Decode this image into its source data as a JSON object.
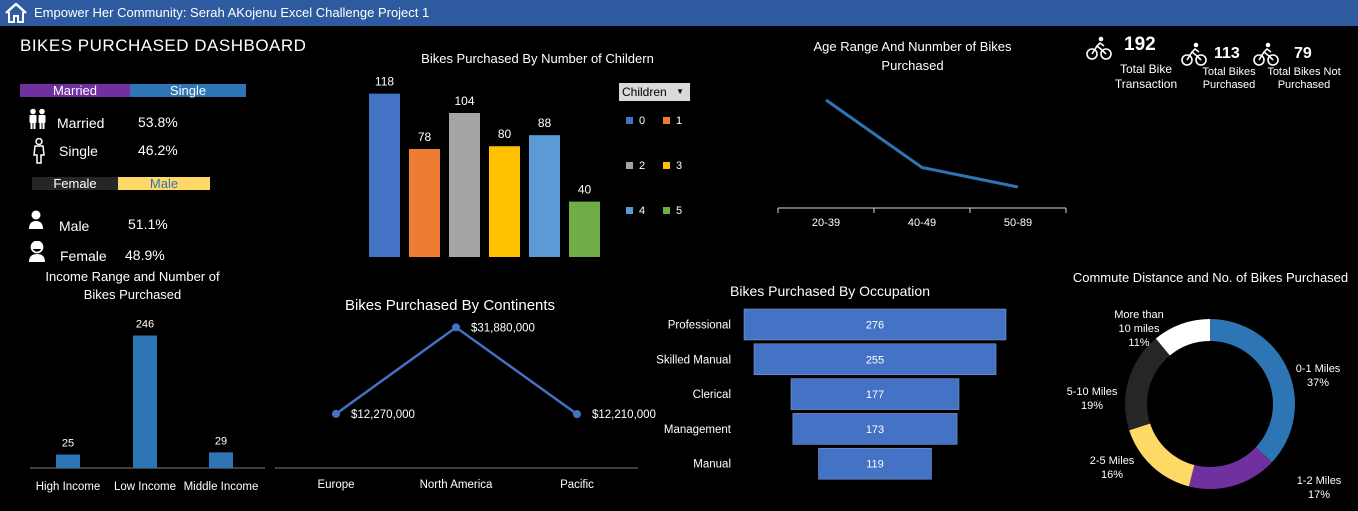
{
  "header": {
    "title": "Empower Her Community: Serah AKojenu Excel Challenge Project 1"
  },
  "dashboard_title": "BIKES PURCHASED DASHBOARD",
  "marital": {
    "legend": [
      "Married",
      "Single"
    ],
    "legend_colors": [
      "#7030a0",
      "#2e75b6"
    ],
    "stats": [
      {
        "label": "Married",
        "value": "53.8%"
      },
      {
        "label": "Single",
        "value": "46.2%"
      }
    ]
  },
  "gender": {
    "legend": [
      "Female",
      "Male"
    ],
    "legend_colors": [
      "#262626",
      "#ffd966"
    ],
    "stats": [
      {
        "label": "Male",
        "value": "51.1%"
      },
      {
        "label": "Female",
        "value": "48.9%"
      }
    ]
  },
  "children_filter": {
    "label": "Children",
    "options": [
      "0",
      "1",
      "2",
      "3",
      "4",
      "5"
    ]
  },
  "kpis": [
    {
      "value": "192",
      "label": "Total Bike Transaction"
    },
    {
      "value": "113",
      "label": "Total Bikes Purchased"
    },
    {
      "value": "79",
      "label": "Total Bikes Not Purchased"
    }
  ],
  "chart_data": [
    {
      "id": "children",
      "type": "bar",
      "title": "Bikes Purchased By Number of Childern",
      "categories": [
        "0",
        "1",
        "2",
        "3",
        "4",
        "5"
      ],
      "values": [
        118,
        78,
        104,
        80,
        88,
        40
      ],
      "colors": [
        "#4472c4",
        "#ed7d31",
        "#a5a5a5",
        "#ffc000",
        "#5b9bd5",
        "#70ad47"
      ],
      "legend_title": "Children",
      "ylim": [
        0,
        130
      ]
    },
    {
      "id": "age",
      "type": "line",
      "title": "Age Range And Nunmber of Bikes Purchased",
      "categories": [
        "20-39",
        "40-49",
        "50-89"
      ],
      "values": [
        72,
        27,
        14
      ],
      "ylim": [
        0,
        80
      ]
    },
    {
      "id": "income",
      "type": "bar",
      "title": "Income Range and Number of Bikes Purchased",
      "categories": [
        "High Income",
        "Low Income",
        "Middle Income"
      ],
      "values": [
        25,
        246,
        29
      ],
      "ylim": [
        0,
        260
      ]
    },
    {
      "id": "continents",
      "type": "line",
      "title": "Bikes Purchased By Continents",
      "categories": [
        "Europe",
        "North America",
        "Pacific"
      ],
      "values": [
        12270000,
        31880000,
        12210000
      ],
      "data_labels": [
        "$12,270,000",
        "$31,880,000",
        "$12,210,000"
      ],
      "ylim": [
        0,
        34000000
      ]
    },
    {
      "id": "occupation",
      "type": "bar",
      "orientation": "horizontal",
      "title": "Bikes Purchased By Occupation",
      "categories": [
        "Professional",
        "Skilled Manual",
        "Clerical",
        "Management",
        "Manual"
      ],
      "values": [
        276,
        255,
        177,
        173,
        119
      ]
    },
    {
      "id": "commute",
      "type": "pie",
      "title": "Commute Distance and No. of Bikes Purchased",
      "categories": [
        "0-1 Miles",
        "1-2 Miles",
        "2-5 Miles",
        "5-10 Miles",
        "More than 10 miles"
      ],
      "values": [
        37,
        17,
        16,
        19,
        11
      ],
      "labels": [
        "37%",
        "17%",
        "16%",
        "19%",
        "11%"
      ],
      "colors": [
        "#2e75b6",
        "#7030a0",
        "#ffd966",
        "#262626",
        "#ffffff"
      ]
    }
  ]
}
